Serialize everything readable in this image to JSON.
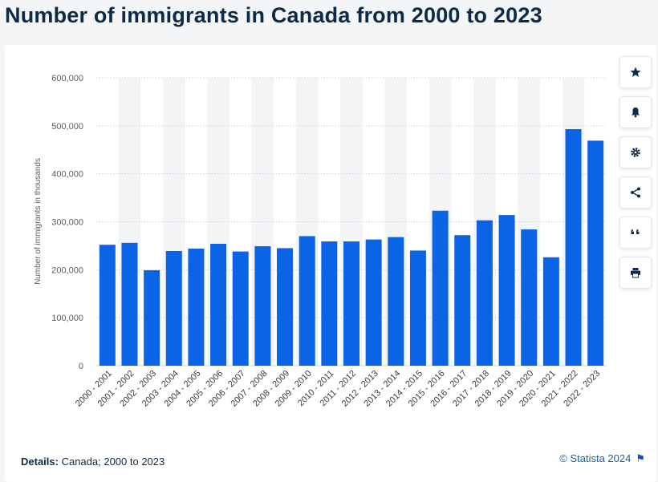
{
  "page": {
    "title": "Number of immigrants in Canada from 2000 to 2023"
  },
  "toolbar": {
    "buttons": [
      {
        "name": "favorite-button",
        "icon": "star-icon"
      },
      {
        "name": "notification-button",
        "icon": "bell-icon"
      },
      {
        "name": "settings-button",
        "icon": "gear-icon"
      },
      {
        "name": "share-button",
        "icon": "share-icon"
      },
      {
        "name": "cite-button",
        "icon": "quote-icon"
      },
      {
        "name": "print-button",
        "icon": "print-icon"
      }
    ]
  },
  "footer": {
    "details_label": "Details:",
    "details_text": " Canada; 2000 to 2023",
    "credit": "© Statista 2024",
    "flag_icon": "flag-icon"
  },
  "colors": {
    "bar": "#0b63e5",
    "grid": "#cfd6de",
    "band": "#f2f4f6",
    "text": "#0e2a47"
  },
  "chart_data": {
    "type": "bar",
    "title": "Number of immigrants in Canada from 2000 to 2023",
    "ylabel": "Number of immigrants in thousands",
    "xlabel": "",
    "ylim": [
      0,
      600000
    ],
    "yticks": [
      "0",
      "100,000",
      "200,000",
      "300,000",
      "400,000",
      "500,000",
      "600,000"
    ],
    "grid": true,
    "categories": [
      "2000 - 2001",
      "2001 - 2002",
      "2002 - 2003",
      "2003 - 2004",
      "2004 - 2005",
      "2005 - 2006",
      "2006 - 2007",
      "2007 - 2008",
      "2008 - 2009",
      "2009 - 2010",
      "2010 - 2011",
      "2011 - 2012",
      "2012 - 2013",
      "2013 - 2014",
      "2014 - 2015",
      "2015 - 2016",
      "2016 - 2017",
      "2017 - 2018",
      "2018 - 2019",
      "2019 - 2020",
      "2020 - 2021",
      "2021 - 2022",
      "2022 - 2023"
    ],
    "values": [
      252000,
      256000,
      199000,
      239000,
      244000,
      254000,
      238000,
      249000,
      245000,
      270000,
      259000,
      259000,
      263000,
      268000,
      240000,
      323000,
      272000,
      303000,
      314000,
      284000,
      226000,
      493000,
      469000
    ]
  }
}
